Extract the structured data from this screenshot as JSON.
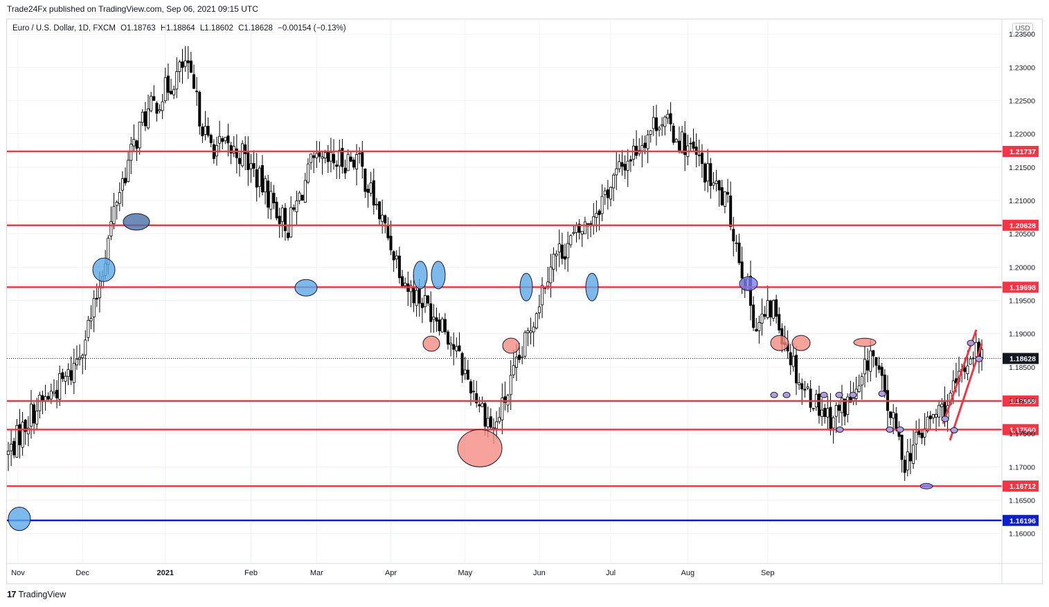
{
  "header": {
    "published": "Trade24Fx published on TradingView.com, Sep 06, 2021 09:15 UTC"
  },
  "legend": {
    "symbol": "Euro / U.S. Dollar, 1D, FXCM",
    "open": "O1.18763",
    "high": "H1.18864",
    "low": "L1.18602",
    "close": "C1.18628",
    "change": "−0.00154 (−0.13%)"
  },
  "currency_label": "USD",
  "footer": {
    "brand": "TradingView",
    "logo": "17"
  },
  "colors": {
    "up": "#ffffff",
    "down": "#000000",
    "level": "#f23645",
    "support": "#0d1fcf",
    "grid": "#f0f3fa"
  },
  "chart_data": {
    "type": "candlestick",
    "title": "Euro / U.S. Dollar, 1D, FXCM",
    "ylim": [
      1.1555,
      1.2372
    ],
    "y_ticks": [
      "1.23500",
      "1.23000",
      "1.22500",
      "1.22000",
      "1.21500",
      "1.21000",
      "1.20500",
      "1.20000",
      "1.19500",
      "1.19000",
      "1.18500",
      "1.18000",
      "1.17500",
      "1.17000",
      "1.16500",
      "1.16000"
    ],
    "x_ticks": [
      "Nov",
      "Dec",
      "2021",
      "Feb",
      "Mar",
      "Apr",
      "May",
      "Jun",
      "Jul",
      "Aug",
      "Sep"
    ],
    "last_price": "1.18628",
    "horizontal_levels": [
      {
        "label": "1.21737",
        "value": 1.21737,
        "color": "#f23645"
      },
      {
        "label": "1.20628",
        "value": 1.20628,
        "color": "#f23645"
      },
      {
        "label": "1.19698",
        "value": 1.19698,
        "color": "#f23645"
      },
      {
        "label": "1.17989",
        "value": 1.17989,
        "color": "#f23645"
      },
      {
        "label": "1.17560",
        "value": 1.1756,
        "color": "#f23645"
      },
      {
        "label": "1.16712",
        "value": 1.16712,
        "color": "#f23645"
      },
      {
        "label": "1.16196",
        "value": 1.16196,
        "color": "#0d1fcf"
      }
    ],
    "trend_channel": [
      {
        "from": [
          0.63,
          1.1765
        ],
        "to": [
          4.0,
          1.1906
        ]
      },
      {
        "from": [
          1.3,
          1.174
        ],
        "to": [
          4.15,
          1.1885
        ]
      }
    ],
    "anchors": [
      [
        0,
        1.172
      ],
      [
        8,
        1.178
      ],
      [
        22,
        1.184
      ],
      [
        30,
        1.1935
      ],
      [
        38,
        1.2105
      ],
      [
        47,
        1.222
      ],
      [
        62,
        1.2305
      ],
      [
        70,
        1.2185
      ],
      [
        82,
        1.217
      ],
      [
        98,
        1.206
      ],
      [
        106,
        1.215
      ],
      [
        122,
        1.2165
      ],
      [
        128,
        1.21
      ],
      [
        140,
        1.197
      ],
      [
        152,
        1.192
      ],
      [
        160,
        1.184
      ],
      [
        170,
        1.1755
      ],
      [
        180,
        1.187
      ],
      [
        190,
        1.201
      ],
      [
        202,
        1.206
      ],
      [
        214,
        1.2145
      ],
      [
        228,
        1.2225
      ],
      [
        240,
        1.217
      ],
      [
        252,
        1.209
      ],
      [
        262,
        1.191
      ],
      [
        268,
        1.194
      ],
      [
        278,
        1.182
      ],
      [
        288,
        1.1775
      ],
      [
        298,
        1.181
      ],
      [
        302,
        1.1875
      ],
      [
        314,
        1.171
      ],
      [
        322,
        1.1765
      ],
      [
        330,
        1.18
      ],
      [
        338,
        1.188
      ],
      [
        341,
        1.1863
      ]
    ],
    "candle_count": 342,
    "start": "2020-10-29",
    "end": "2021-09-06"
  }
}
